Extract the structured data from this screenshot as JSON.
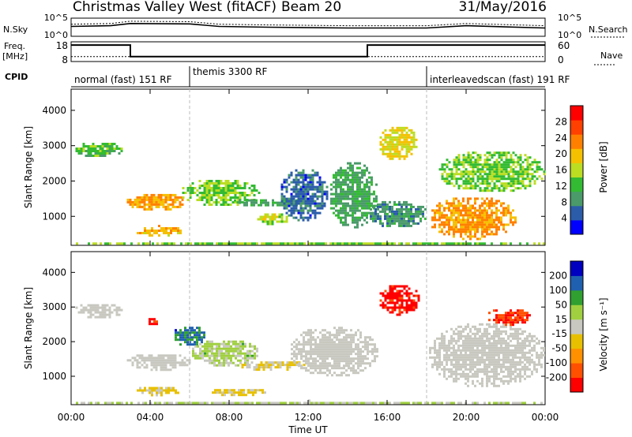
{
  "header": {
    "title": "Christmas Valley West (fitACF)",
    "beam": "Beam 20",
    "date": "31/May/2016"
  },
  "nsky_panel": {
    "left_label": "N.Sky",
    "right_label": "N.Search",
    "left_ticks": [
      "10^5",
      "10^0"
    ],
    "right_ticks": [
      "10^5",
      "10^0"
    ]
  },
  "freq_panel": {
    "left_label": [
      "Freq.",
      "[MHz]"
    ],
    "right_label": "Nave",
    "left_ticks": [
      "18",
      "8"
    ],
    "right_ticks": [
      "60",
      "0"
    ]
  },
  "cpid": {
    "label": "CPID",
    "segments": [
      {
        "name": "normal (fast) 151 RF",
        "start": 0.0,
        "end": 6.0
      },
      {
        "name": "themis 3300 RF",
        "start": 6.0,
        "end": 18.0
      },
      {
        "name": "interleavedscan (fast) 191 RF",
        "start": 18.0,
        "end": 24.0
      }
    ]
  },
  "colors": {
    "power_scale": [
      "#0000ff",
      "#2b5caa",
      "#4a9a6a",
      "#33bb33",
      "#bbdd22",
      "#f5c000",
      "#ff8000",
      "#ff4000",
      "#ff0000"
    ],
    "velocity_scale": [
      "#ff0000",
      "#ff5000",
      "#ff9000",
      "#e8c000",
      "#c8c8c0",
      "#a0d040",
      "#30a030",
      "#2060b0",
      "#0000c0"
    ],
    "ground_scatter": "#c8c8c0"
  },
  "chart_data": {
    "type": "heatmap",
    "xlabel": "Time UT",
    "ylabel": "Slant Range [km]",
    "x_ticks": [
      "00:00",
      "04:00",
      "08:00",
      "12:00",
      "16:00",
      "20:00",
      "00:00"
    ],
    "x_range_hours": [
      0,
      24
    ],
    "y_ticks": [
      1000,
      2000,
      3000,
      4000
    ],
    "y_range_km": [
      180,
      4600
    ],
    "panels": [
      {
        "name": "power",
        "colorbar_label": "Power [dB]",
        "colorbar_ticks": [
          "28",
          "24",
          "20",
          "16",
          "12",
          "8",
          "4"
        ],
        "colorbar_range": [
          0,
          32
        ],
        "regions": [
          {
            "t0": 0.1,
            "t1": 2.6,
            "r0": 2700,
            "r1": 3150,
            "value": 12
          },
          {
            "t0": 2.7,
            "t1": 5.8,
            "r0": 1200,
            "r1": 1700,
            "value": 22
          },
          {
            "t0": 3.2,
            "t1": 5.6,
            "r0": 480,
            "r1": 760,
            "value": 20
          },
          {
            "t0": 5.5,
            "t1": 9.5,
            "r0": 1300,
            "r1": 2100,
            "value": 14
          },
          {
            "t0": 8.0,
            "t1": 11.8,
            "r0": 1300,
            "r1": 1550,
            "value": 10
          },
          {
            "t0": 9.3,
            "t1": 11.0,
            "r0": 800,
            "r1": 1150,
            "value": 16
          },
          {
            "t0": 10.5,
            "t1": 13.0,
            "r0": 900,
            "r1": 2400,
            "value": 6
          },
          {
            "t0": 13.0,
            "t1": 15.5,
            "r0": 700,
            "r1": 2600,
            "value": 10
          },
          {
            "t0": 15.5,
            "t1": 17.5,
            "r0": 2600,
            "r1": 3600,
            "value": 18
          },
          {
            "t0": 15.0,
            "t1": 18.0,
            "r0": 700,
            "r1": 1500,
            "value": 9
          },
          {
            "t0": 18.0,
            "t1": 22.5,
            "r0": 380,
            "r1": 1600,
            "value": 22
          },
          {
            "t0": 18.5,
            "t1": 24.0,
            "r0": 1700,
            "r1": 2900,
            "value": 14
          },
          {
            "t0": 0.0,
            "t1": 24.0,
            "r0": 200,
            "r1": 330,
            "value": 14
          }
        ]
      },
      {
        "name": "velocity",
        "colorbar_label": "Velocity [m s^-1]",
        "colorbar_ticks": [
          "200",
          "100",
          "50",
          "15",
          "-15",
          "-50",
          "-100",
          "-200"
        ],
        "colorbar_range": [
          -250,
          250
        ],
        "regions": [
          {
            "t0": 0.1,
            "t1": 2.6,
            "r0": 2700,
            "r1": 3150,
            "value": 0,
            "ground": true
          },
          {
            "t0": 2.7,
            "t1": 6.0,
            "r0": 1200,
            "r1": 1700,
            "value": 0,
            "ground": true
          },
          {
            "t0": 3.2,
            "t1": 5.6,
            "r0": 480,
            "r1": 760,
            "value": -40
          },
          {
            "t0": 3.8,
            "t1": 4.4,
            "r0": 2500,
            "r1": 2750,
            "value": -220
          },
          {
            "t0": 5.0,
            "t1": 6.8,
            "r0": 1900,
            "r1": 2500,
            "value": 150
          },
          {
            "t0": 6.0,
            "t1": 9.5,
            "r0": 1300,
            "r1": 2100,
            "value": 40
          },
          {
            "t0": 8.5,
            "t1": 11.8,
            "r0": 1200,
            "r1": 1500,
            "value": -30
          },
          {
            "t0": 7.0,
            "t1": 10.0,
            "r0": 450,
            "r1": 700,
            "value": -40
          },
          {
            "t0": 11.0,
            "t1": 15.5,
            "r0": 1000,
            "r1": 2500,
            "value": 0,
            "ground": true
          },
          {
            "t0": 15.5,
            "t1": 17.6,
            "r0": 2800,
            "r1": 3700,
            "value": -220
          },
          {
            "t0": 18.0,
            "t1": 24.0,
            "r0": 700,
            "r1": 2600,
            "value": 0,
            "ground": true
          },
          {
            "t0": 21.0,
            "t1": 23.2,
            "r0": 2500,
            "r1": 3000,
            "value": -200
          },
          {
            "t0": 0.0,
            "t1": 24.0,
            "r0": 200,
            "r1": 330,
            "value": 30
          }
        ]
      }
    ],
    "nsky_series": [
      {
        "t": 0.0,
        "v": 0.55
      },
      {
        "t": 2.0,
        "v": 0.6
      },
      {
        "t": 3.0,
        "v": 0.75
      },
      {
        "t": 6.0,
        "v": 0.72
      },
      {
        "t": 7.5,
        "v": 0.55
      },
      {
        "t": 10.0,
        "v": 0.5
      },
      {
        "t": 14.0,
        "v": 0.45
      },
      {
        "t": 18.0,
        "v": 0.45
      },
      {
        "t": 20.0,
        "v": 0.6
      },
      {
        "t": 24.0,
        "v": 0.45
      }
    ],
    "freq_series": [
      {
        "t": 0.0,
        "f": 17.0
      },
      {
        "t": 3.0,
        "f": 17.0
      },
      {
        "t": 3.0,
        "f": 10.0
      },
      {
        "t": 15.0,
        "f": 10.0
      },
      {
        "t": 15.0,
        "f": 17.0
      },
      {
        "t": 24.0,
        "f": 17.0
      }
    ],
    "nave_level": 12
  },
  "axis_labels": {
    "x": "Time UT",
    "y1": "Slant Range [km]",
    "y2": "Slant Range [km]",
    "cb1": "Power [dB]",
    "cb2": "Velocity [m s⁻¹]"
  }
}
